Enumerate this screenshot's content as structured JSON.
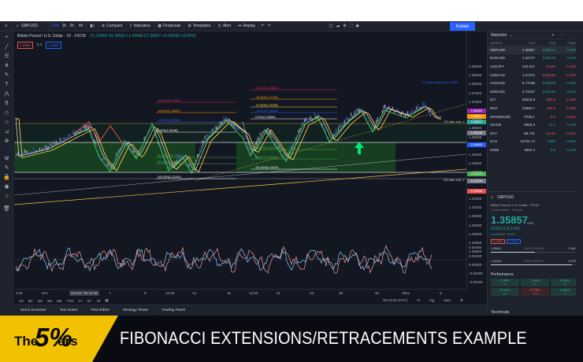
{
  "toolbar": {
    "symbol": "GBPUSD",
    "interval": "15m",
    "intervals": [
      "1h",
      "2h",
      "4h"
    ],
    "compare": "Compare",
    "indicators": "Indicators",
    "financials": "Financials",
    "templates": "Templates",
    "alert": "Alert",
    "replay": "Replay",
    "publish": "Publish"
  },
  "legend": {
    "instrument": "British Pound / U.S. Dollar",
    "interval": "15",
    "exchange": "FXCM",
    "ohlc": "O1.34459 H1.34562 L1.34449 C1.34507 +0.00048 (+0.04%)",
    "sell_price": "1.3584",
    "spread": "0.4",
    "buy_price": "1.3585"
  },
  "fib_labels": [
    {
      "text": "-61.80%(1.37905)",
      "color": "#e91e63"
    },
    {
      "text": "-44.80%(1.36894)",
      "color": "#ff9800"
    },
    {
      "text": "-18.00%(1.35852)",
      "color": "#2962ff"
    },
    {
      "text": "0.00%(1.35198)",
      "color": "#ffffff"
    },
    {
      "text": "38.20%(1.33779)",
      "color": "#4caf50"
    },
    {
      "text": "50.00%(1.33443)",
      "color": "#4caf50"
    },
    {
      "text": "100.00%(1.31344)",
      "color": "#ffffff"
    }
  ],
  "fib_labels_right": [
    {
      "text": "-61.80%(1.38855)",
      "color": "#e91e63"
    },
    {
      "text": "-44.80%(1.37935)",
      "color": "#ff9800"
    },
    {
      "text": "-27.20%(1.37009)",
      "color": "#ffeb3b"
    },
    {
      "text": "-18.00%(1.36456)",
      "color": "#2962ff"
    },
    {
      "text": "0.00%(1.35950)",
      "color": "#ffffff"
    },
    {
      "text": "38.20%(1.33779)",
      "color": "#4caf50"
    },
    {
      "text": "61.80%(1.32844)",
      "color": "#4caf50"
    },
    {
      "text": "100.00%(1.31879)",
      "color": "#ffffff"
    }
  ],
  "annotations": {
    "ext_label": "2/3 ratio extended 1.3676",
    "tp_label": "1/3 ratio sub. n",
    "sl_label": "2/3 ratio sub. n"
  },
  "price_axis": {
    "labels": [
      "1.39000",
      "1.38500",
      "1.38000",
      "1.37500",
      "1.37000",
      "1.36500",
      "1.36000",
      "1.35500",
      "1.35000",
      "1.34500",
      "1.34000",
      "1.33500",
      "1.33000",
      "1.32500",
      "1.32000",
      "1.31500",
      "1.31000",
      "1.30500",
      "1.30000",
      "1.29500",
      "1.29000",
      "1.28500"
    ],
    "tags": [
      {
        "text": "1.36092",
        "color": "#9c27b0"
      },
      {
        "text": "1.35852",
        "color": "#ff9800"
      },
      {
        "text": "1.35507",
        "color": "#26a69a"
      },
      {
        "text": "1.35198",
        "color": "#787b86"
      },
      {
        "text": "1.34500",
        "color": "#2962ff"
      },
      {
        "text": "1.33723",
        "color": "#4caf50"
      },
      {
        "text": "1.31344",
        "color": "#787b86"
      },
      {
        "text": "1.30528",
        "color": "#ef5350"
      }
    ],
    "osc_labels": [
      "0.00400",
      "0.00200",
      "0.00000",
      "-0.00200",
      "-0.00400"
    ]
  },
  "time_axis": {
    "labels": [
      "2:00",
      "Dec",
      "7",
      "9",
      "12:00",
      "14",
      "16",
      "12:00",
      "21",
      "23",
      "28",
      "30",
      "2021",
      "6"
    ],
    "cursor": "03 Dec '20  12:45"
  },
  "range_bar": {
    "ranges": [
      "1D",
      "5D",
      "1M",
      "3M",
      "6M",
      "YTD",
      "1Y",
      "5Y",
      "All"
    ],
    "clock": "08:13:02 (UTC)",
    "pct": "%",
    "log": "log",
    "auto": "auto"
  },
  "bottom_tabs": [
    "Stock Screener",
    "Text Notes",
    "Pine Editor",
    "Strategy Tester",
    "Trading Panel"
  ],
  "watchlist": {
    "title": "Watchlist",
    "columns": [
      "Symbol",
      "Last",
      "Chg",
      "Chg%"
    ],
    "rows": [
      {
        "sym": "GBPUSD",
        "last": "1.35857",
        "chg": "0.00213",
        "pct": "0.16%",
        "dir": "up",
        "sel": true
      },
      {
        "sym": "EURUSD",
        "last": "1.22717",
        "chg": "0.00279",
        "pct": "0.23%",
        "dir": "up"
      },
      {
        "sym": "USDJPY",
        "last": "102.917",
        "chg": "-0.195",
        "pct": "-0.19%",
        "dir": "dn"
      },
      {
        "sym": "USDCAD",
        "last": "1.27471",
        "chg": "-0.00246",
        "pct": "-0.19%",
        "dir": "dn"
      },
      {
        "sym": "AUDUSD",
        "last": "0.77189",
        "chg": "0.00579",
        "pct": "0.76%",
        "dir": "up"
      },
      {
        "sym": "NZDUSD",
        "last": "0.72167",
        "chg": "0.00440",
        "pct": "0.61%",
        "dir": "up"
      },
      {
        "sym": "DJI",
        "last": "30223.9",
        "chg": "-382.6",
        "pct": "-1.25%",
        "dir": "dn"
      },
      {
        "sym": "NDX",
        "last": "12694.7",
        "chg": "-193.6",
        "pct": "-1.50%",
        "dir": "dn"
      },
      {
        "sym": "SPX500USD",
        "last": "3706.1",
        "chg": "-0.6",
        "pct": "-0.02%",
        "dir": "dn"
      },
      {
        "sym": "UKX00",
        "last": "6608.3",
        "chg": "47.1",
        "pct": "0.72%",
        "dir": "up"
      },
      {
        "sym": "DXY",
        "last": "89.731",
        "chg": "-0.148",
        "pct": "-0.16%",
        "dir": "dn"
      },
      {
        "sym": "DAX",
        "last": "13726.74",
        "chg": "7.960",
        "pct": "0.06%",
        "dir": "up"
      },
      {
        "sym": "SX5E",
        "last": "3561.2",
        "chg": "4.8",
        "pct": "0.13%",
        "dir": "up"
      }
    ]
  },
  "details": {
    "symbol": "GBPUSD",
    "name": "British Pound / U.S. Dollar · FXCM",
    "exchange": "Forex Market · Europe",
    "price": "1.35857",
    "currency": "USD",
    "change": "0.00213 (0.16%)",
    "market": "● MARKET OPEN",
    "sell": "1.3584",
    "buy": "1.3585",
    "day_low": "1.35611",
    "day_high": "1.36129",
    "day_label": "DAY'S RANGE",
    "day_level": 0.5,
    "wk_low": "1.14141",
    "wk_high": "1.37049",
    "wk_label": "52WK RANGE",
    "wk_level": 0.92,
    "perf_title": "Performance",
    "perf": [
      {
        "p": "0.48%",
        "l": "1W",
        "dir": "up"
      },
      {
        "p": "1.40%",
        "l": "1M",
        "dir": "up"
      },
      {
        "p": "4.90%",
        "l": "3M",
        "dir": "up"
      },
      {
        "p": "8.04%",
        "l": "6M",
        "dir": "up"
      },
      {
        "p": "-0.79%",
        "l": "YTD",
        "dir": "dn"
      },
      {
        "p": "4.25%",
        "l": "1Y",
        "dir": "up"
      }
    ],
    "tech_title": "Technicals"
  },
  "banner": {
    "brand_the": "The",
    "brand_5": "5%",
    "brand_ers": "ers",
    "title": "FIBONACCI EXTENSIONS/RETRACEMENTS EXAMPLE"
  }
}
